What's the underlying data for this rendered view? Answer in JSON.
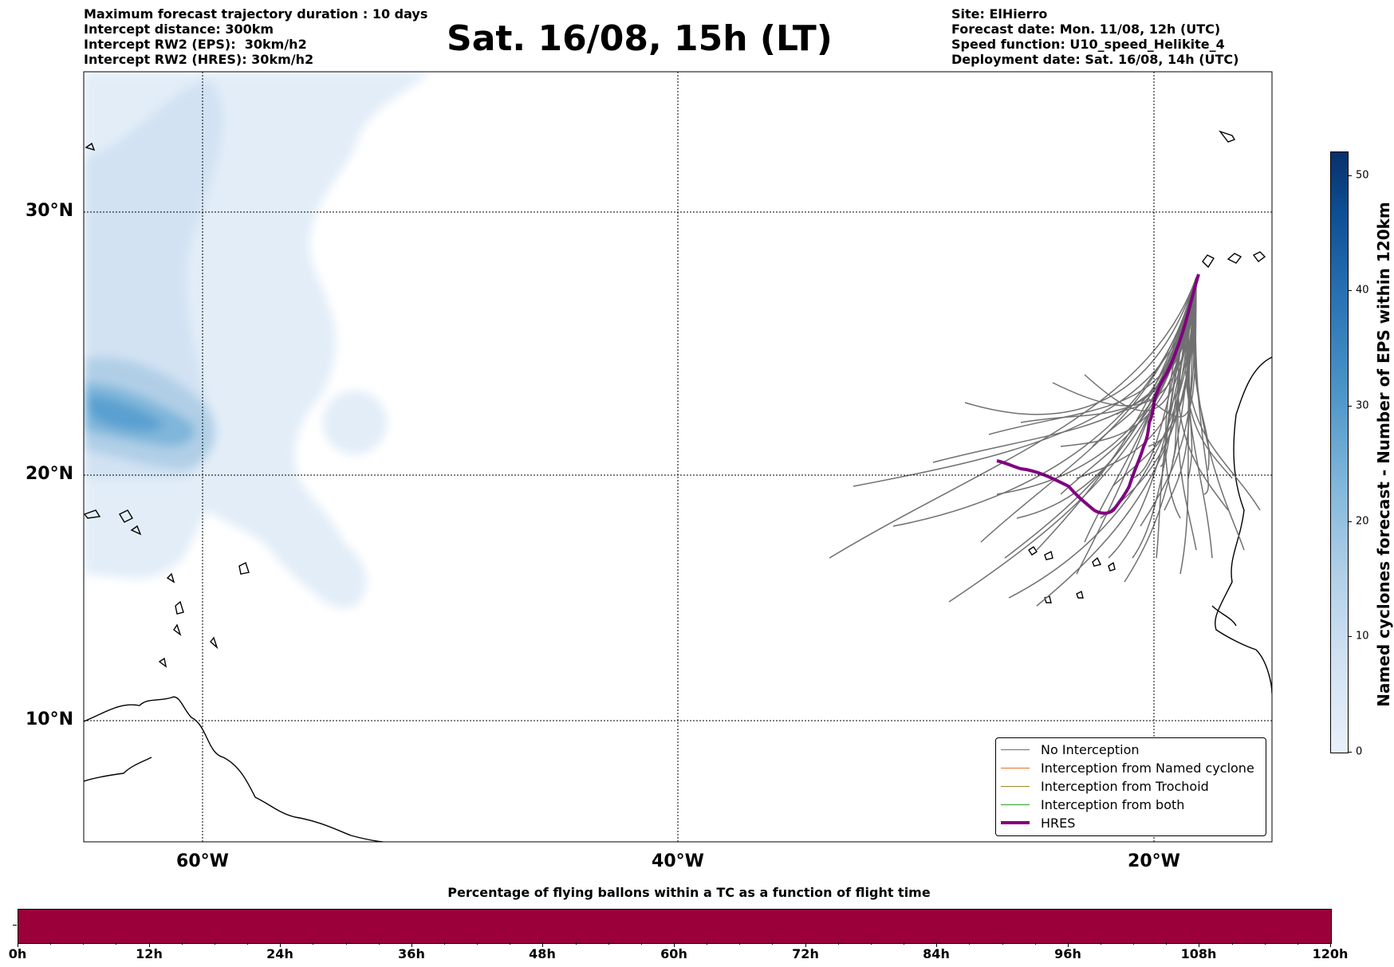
{
  "header_left": [
    "Maximum forecast trajectory duration : 10 days",
    "Intercept distance: 300km",
    "Intercept RW2 (EPS):  30km/h2",
    "Intercept RW2 (HRES): 30km/h2"
  ],
  "title": "Sat. 16/08, 15h (LT)",
  "header_right": [
    "Site: ElHierro",
    "Forecast date: Mon. 11/08, 12h (UTC)",
    "Speed function: U10_speed_Helikite_4",
    "Deployment date: Sat. 16/08, 14h (UTC)"
  ],
  "map": {
    "lat_labels": [
      "30°N",
      "20°N",
      "10°N"
    ],
    "lon_labels": [
      "60°W",
      "40°W",
      "20°W"
    ],
    "lat_range": [
      5.0,
      36.0
    ],
    "lon_range": [
      -65.0,
      -15.0
    ],
    "gridlines": true
  },
  "legend": {
    "items": [
      {
        "label": "No Interception",
        "color": "#707070"
      },
      {
        "label": "Interception from Named cyclone",
        "color": "#e8702a"
      },
      {
        "label": "Interception from Trochoid",
        "color": "#9a8a2a"
      },
      {
        "label": "Interception from both",
        "color": "#2ca02c"
      },
      {
        "label": "HRES",
        "color": "#800080"
      }
    ]
  },
  "colorbar": {
    "title": "Named cyclones forecast - Number of EPS within 120km",
    "ticks": [
      "0",
      "10",
      "20",
      "30",
      "40",
      "50"
    ],
    "range": [
      0,
      52
    ]
  },
  "tc_bar": {
    "title": "Percentage of flying ballons within a TC as a function of flight time",
    "ticks": [
      "0h",
      "12h",
      "24h",
      "36h",
      "48h",
      "60h",
      "72h",
      "84h",
      "96h",
      "108h",
      "120h"
    ],
    "color": "#9b003b"
  }
}
